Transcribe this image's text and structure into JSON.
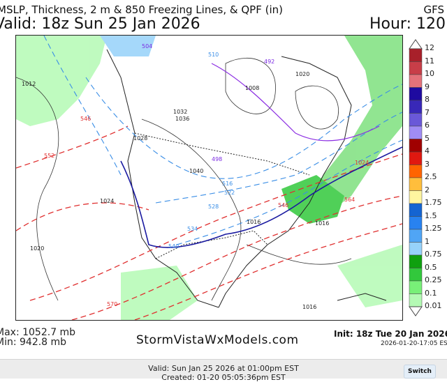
{
  "header": {
    "title": "MSLP, Thickness, 2 m & 850 Freezing Lines, & QPF (in)",
    "model": "GFS",
    "valid": "Valid: 18z Sun 25 Jan 2026",
    "hour": "Hour: 120"
  },
  "map": {
    "pressure_labels": [
      "1012",
      "1016",
      "1020",
      "1024",
      "1028",
      "1032",
      "1036",
      "1040",
      "1024",
      "1028",
      "1016",
      "1020",
      "1016",
      "1012",
      "1008",
      "1020",
      "1024",
      "1016",
      "1024",
      "1016",
      "1016"
    ],
    "thickness_labels_red": [
      "546",
      "552",
      "564",
      "570",
      "564",
      "558",
      "546",
      "1024"
    ],
    "thickness_labels_blue": [
      "510",
      "516",
      "522",
      "528",
      "534",
      "540",
      "546",
      "504",
      "498",
      "492"
    ],
    "colors": {
      "qpf_green": "#66cc66",
      "thickness_red": "#e03030",
      "thickness_blue": "#3a8ee6",
      "freezing_850": "#1a1aa0",
      "isobar": "#222222",
      "freezing_2m": "#8a2be2"
    }
  },
  "colorbar": {
    "labels": [
      "12",
      "11",
      "10",
      "9",
      "8",
      "7",
      "6",
      "5",
      "4",
      "3",
      "2.5",
      "2",
      "1.75",
      "1.5",
      "1.25",
      "1",
      "0.75",
      "0.5",
      "0.25",
      "0.1",
      "0.01"
    ],
    "colors": [
      "#a8202a",
      "#c83e48",
      "#e4727a",
      "#1e0aa0",
      "#3828b8",
      "#6a58d8",
      "#a08cf4",
      "#a00000",
      "#e01810",
      "#ff6400",
      "#ffbe3c",
      "#fff5a0",
      "#1464d2",
      "#2882f0",
      "#50a5f5",
      "#96d2fa",
      "#0fa00f",
      "#32c83c",
      "#78f078",
      "#b4fab4"
    ]
  },
  "footer": {
    "max": "Max: 1052.7 mb",
    "min": "Min: 942.8 mb",
    "brand": "StormVistaWxModels.com",
    "init": "Init: 18z Tue 20 Jan 2026",
    "stamp": "2026-01-20-17:05 EST"
  },
  "bottom_bar": {
    "valid": "Valid: Sun Jan 25 2026 at 01:00pm EST",
    "created": "Created: 01-20 05:05:36pm EST",
    "switch_label": "Switch"
  }
}
